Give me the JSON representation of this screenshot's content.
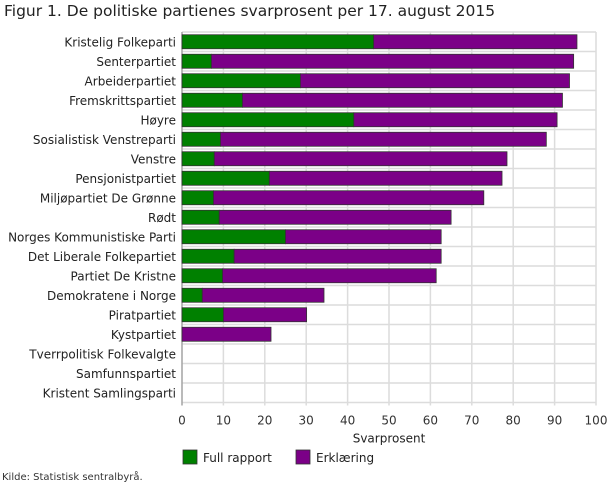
{
  "chart_data": {
    "type": "bar",
    "orientation": "horizontal",
    "stacked": true,
    "title": "Figur 1. De politiske partienes svarprosent per 17. august 2015",
    "xlabel": "Svarprosent",
    "xlim": [
      0,
      100
    ],
    "xticks": [
      0,
      10,
      20,
      30,
      40,
      50,
      60,
      70,
      80,
      90,
      100
    ],
    "grid": true,
    "legend_position": "bottom",
    "categories": [
      "Kristelig Folkeparti",
      "Senterpartiet",
      "Arbeiderpartiet",
      "Fremskrittspartiet",
      "Høyre",
      "Sosialistisk Venstreparti",
      "Venstre",
      "Pensjonistpartiet",
      "Miljøpartiet De Grønne",
      "Rødt",
      "Norges Kommunistiske Parti",
      "Det Liberale Folkepartiet",
      "Partiet De Kristne",
      "Demokratene i Norge",
      "Piratpartiet",
      "Kystpartiet",
      "Tverrpolitisk Folkevalgte",
      "Samfunnspartiet",
      "Kristent Samlingsparti"
    ],
    "series": [
      {
        "name": "Full rapport",
        "color": "#008000",
        "values": [
          46.3,
          7.1,
          28.6,
          14.6,
          41.5,
          9.3,
          7.8,
          21.1,
          7.6,
          9.0,
          25.0,
          12.6,
          9.8,
          4.9,
          10.0,
          0,
          0,
          0,
          0
        ]
      },
      {
        "name": "Erklæring",
        "color": "#7b0087",
        "values": [
          49.1,
          87.5,
          65.0,
          77.3,
          49.1,
          78.7,
          70.7,
          56.2,
          65.3,
          56.0,
          37.6,
          50.0,
          51.6,
          29.4,
          20.1,
          21.5,
          0,
          0,
          0
        ]
      }
    ]
  },
  "source": "Kilde: Statistisk sentralbyrå."
}
